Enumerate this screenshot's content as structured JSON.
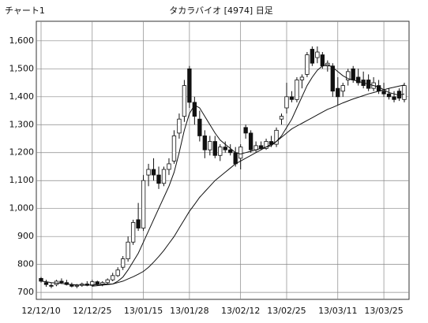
{
  "chart_data": {
    "type": "candlestick",
    "label": "チャート1",
    "title": "タカラバイオ [4974] 日足",
    "categories": [
      "12/12/10",
      null,
      null,
      null,
      null,
      null,
      null,
      null,
      null,
      null,
      "12/12/25",
      null,
      null,
      null,
      null,
      null,
      null,
      null,
      null,
      null,
      "13/01/15",
      null,
      null,
      null,
      null,
      null,
      null,
      null,
      null,
      "13/01/28",
      null,
      null,
      null,
      null,
      null,
      null,
      null,
      null,
      null,
      "13/02/12",
      null,
      null,
      null,
      null,
      null,
      null,
      null,
      null,
      "13/02/25",
      null,
      null,
      null,
      null,
      null,
      null,
      null,
      null,
      null,
      "13/03/11",
      null,
      null,
      null,
      null,
      null,
      null,
      null,
      null,
      "13/03/25",
      null,
      null,
      null,
      null
    ],
    "open": [
      750,
      735,
      725,
      728,
      740,
      735,
      728,
      722,
      725,
      730,
      725,
      738,
      728,
      735,
      745,
      760,
      790,
      820,
      880,
      960,
      930,
      1120,
      1140,
      1120,
      1090,
      1140,
      1170,
      1270,
      1330,
      1500,
      1380,
      1320,
      1260,
      1210,
      1240,
      1190,
      1220,
      1210,
      1200,
      1180,
      1290,
      1270,
      1210,
      1225,
      1215,
      1240,
      1230,
      1320,
      1360,
      1400,
      1390,
      1460,
      1480,
      1570,
      1540,
      1550,
      1510,
      1510,
      1430,
      1420,
      1460,
      1500,
      1470,
      1460,
      1460,
      1430,
      1440,
      1420,
      1410,
      1400,
      1420,
      1390
    ],
    "high": [
      755,
      745,
      735,
      745,
      750,
      745,
      735,
      730,
      735,
      740,
      745,
      742,
      740,
      750,
      770,
      790,
      830,
      900,
      960,
      1020,
      1120,
      1160,
      1180,
      1150,
      1150,
      1180,
      1280,
      1340,
      1460,
      1510,
      1400,
      1350,
      1280,
      1260,
      1260,
      1230,
      1240,
      1230,
      1220,
      1230,
      1300,
      1280,
      1240,
      1240,
      1250,
      1260,
      1290,
      1340,
      1450,
      1420,
      1470,
      1480,
      1560,
      1580,
      1580,
      1560,
      1530,
      1520,
      1470,
      1450,
      1500,
      1510,
      1500,
      1490,
      1480,
      1470,
      1460,
      1450,
      1430,
      1420,
      1430,
      1450
    ],
    "low": [
      735,
      720,
      715,
      722,
      730,
      725,
      718,
      715,
      720,
      722,
      720,
      725,
      722,
      730,
      740,
      755,
      780,
      810,
      870,
      920,
      920,
      1080,
      1100,
      1070,
      1080,
      1120,
      1160,
      1250,
      1310,
      1360,
      1300,
      1240,
      1180,
      1190,
      1180,
      1170,
      1200,
      1190,
      1150,
      1140,
      1250,
      1200,
      1200,
      1210,
      1210,
      1220,
      1220,
      1300,
      1340,
      1380,
      1380,
      1430,
      1470,
      1510,
      1520,
      1500,
      1490,
      1400,
      1370,
      1400,
      1440,
      1450,
      1440,
      1430,
      1420,
      1420,
      1410,
      1400,
      1390,
      1380,
      1385,
      1380
    ],
    "close": [
      740,
      728,
      722,
      740,
      735,
      728,
      722,
      725,
      730,
      725,
      738,
      728,
      735,
      745,
      760,
      780,
      820,
      880,
      950,
      930,
      1100,
      1140,
      1120,
      1090,
      1140,
      1160,
      1260,
      1320,
      1440,
      1380,
      1330,
      1260,
      1210,
      1240,
      1190,
      1220,
      1210,
      1200,
      1160,
      1220,
      1270,
      1210,
      1225,
      1215,
      1240,
      1230,
      1280,
      1330,
      1400,
      1390,
      1460,
      1470,
      1550,
      1520,
      1560,
      1510,
      1520,
      1420,
      1400,
      1440,
      1490,
      1460,
      1450,
      1440,
      1430,
      1450,
      1420,
      1410,
      1400,
      1390,
      1395,
      1440
    ],
    "lines": [
      {
        "color": "#111111",
        "values": [
          740,
          738,
          735,
          733,
          732,
          730,
          728,
          727,
          726,
          726,
          727,
          728,
          729,
          730,
          730,
          740,
          755,
          780,
          810,
          840,
          880,
          920,
          960,
          1000,
          1040,
          1080,
          1130,
          1200,
          1280,
          1340,
          1370,
          1360,
          1330,
          1300,
          1270,
          1245,
          1230,
          1215,
          1200,
          1195,
          1200,
          1205,
          1210,
          1215,
          1220,
          1225,
          1240,
          1260,
          1290,
          1320,
          1360,
          1400,
          1440,
          1470,
          1495,
          1510,
          1515,
          1505,
          1490,
          1475,
          1465,
          1460,
          1455,
          1450,
          1445,
          1440,
          1435,
          1425,
          1415,
          1410,
          1405,
          1410
        ]
      },
      {
        "color": "#111111",
        "values": [
          null,
          null,
          null,
          null,
          null,
          null,
          null,
          null,
          null,
          null,
          722,
          724,
          726,
          728,
          730,
          735,
          740,
          748,
          756,
          765,
          775,
          790,
          808,
          828,
          850,
          875,
          900,
          930,
          960,
          990,
          1015,
          1040,
          1060,
          1080,
          1100,
          1115,
          1130,
          1145,
          1160,
          1170,
          1180,
          1190,
          1200,
          1210,
          1220,
          1230,
          1240,
          1255,
          1270,
          1285,
          1295,
          1305,
          1315,
          1325,
          1335,
          1345,
          1355,
          1362,
          1370,
          1378,
          1385,
          1392,
          1398,
          1404,
          1410,
          1415,
          1420,
          1425,
          1430,
          1434,
          1438,
          1442
        ]
      }
    ],
    "up_color": "#ffffff",
    "down_color": "#111111",
    "ylim": [
      675,
      1670
    ],
    "yticks": [
      700,
      800,
      900,
      {
        "value": 1000,
        "label": "1,000"
      },
      {
        "value": 1100,
        "label": "1,100"
      },
      {
        "value": 1200,
        "label": "1,200"
      },
      {
        "value": 1300,
        "label": "1,300"
      },
      {
        "value": 1400,
        "label": "1,400"
      },
      {
        "value": 1500,
        "label": "1,500"
      },
      {
        "value": 1600,
        "label": "1,600"
      }
    ],
    "grid": true
  }
}
